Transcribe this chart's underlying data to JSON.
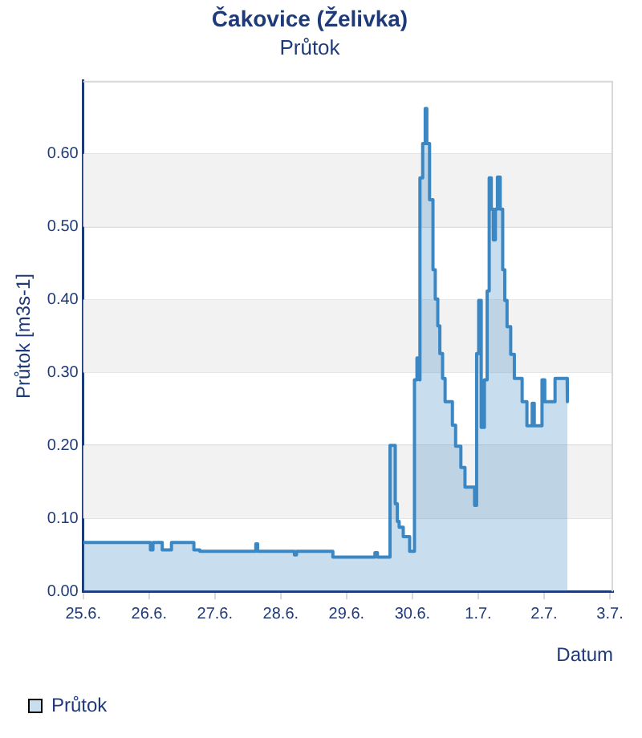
{
  "chart_data": {
    "type": "area",
    "title": "Čakovice (Želivka)",
    "subtitle": "Průtok",
    "xlabel": "Datum",
    "ylabel": "Průtok [m3s-1]",
    "x": [
      "--06-25T00:00",
      "--06-26T00:30",
      "--06-26T00:30",
      "--06-26T01:25",
      "--06-26T01:25",
      "--06-26T04:48",
      "--06-26T04:48",
      "--06-26T08:10",
      "--06-26T08:10",
      "--06-26T16:20",
      "--06-26T16:20",
      "--06-26T18:30",
      "--06-26T18:30",
      "--06-27T14:55",
      "--06-27T14:55",
      "--06-27T15:35",
      "--06-27T15:35",
      "--06-28T05:00",
      "--06-28T05:00",
      "--06-28T05:45",
      "--06-28T05:45",
      "--06-28T19:00",
      "--06-28T19:00",
      "--06-29T10:20",
      "--06-29T10:20",
      "--06-29T11:15",
      "--06-29T11:15",
      "--06-29T15:50",
      "--06-29T15:50",
      "--06-29T17:45",
      "--06-29T17:45",
      "--06-29T18:30",
      "--06-29T18:30",
      "--06-29T19:10",
      "--06-29T19:10",
      "--06-29T20:40",
      "--06-29T20:40",
      "--06-29T23:00",
      "--06-29T23:00",
      "--06-30T00:45",
      "--06-30T00:45",
      "--06-30T01:40",
      "--06-30T01:40",
      "--06-30T02:25",
      "--06-30T02:25",
      "--06-30T02:55",
      "--06-30T02:55",
      "--06-30T03:45",
      "--06-30T03:45",
      "--06-30T04:40",
      "--06-30T04:40",
      "--06-30T05:15",
      "--06-30T05:15",
      "--06-30T06:15",
      "--06-30T06:15",
      "--06-30T07:30",
      "--06-30T07:30",
      "--06-30T08:20",
      "--06-30T08:20",
      "--06-30T09:15",
      "--06-30T09:15",
      "--06-30T10:00",
      "--06-30T10:00",
      "--06-30T11:00",
      "--06-30T11:00",
      "--06-30T11:55",
      "--06-30T11:55",
      "--06-30T14:35",
      "--06-30T14:35",
      "--06-30T15:45",
      "--06-30T15:45",
      "--06-30T17:40",
      "--06-30T17:40",
      "--06-30T19:10",
      "--06-30T19:10",
      "--06-30T22:40",
      "--06-30T22:40",
      "--06-30T23:25",
      "--06-30T23:25",
      "--07-01T00:10",
      "--07-01T00:10",
      "--07-01T01:05",
      "--07-01T01:05",
      "--07-01T02:15",
      "--07-01T02:15",
      "--07-01T03:15",
      "--07-01T03:15",
      "--07-01T04:00",
      "--07-01T04:00",
      "--07-01T04:45",
      "--07-01T04:45",
      "--07-01T05:30",
      "--07-01T05:30",
      "--07-01T06:15",
      "--07-01T06:15",
      "--07-01T07:00",
      "--07-01T07:00",
      "--07-01T08:00",
      "--07-01T08:00",
      "--07-01T08:55",
      "--07-01T08:55",
      "--07-01T09:40",
      "--07-01T09:40",
      "--07-01T10:30",
      "--07-01T10:30",
      "--07-01T11:50",
      "--07-01T11:50",
      "--07-01T13:10",
      "--07-01T13:10",
      "--07-01T16:00",
      "--07-01T16:00",
      "--07-01T17:45",
      "--07-01T17:45",
      "--07-01T19:40",
      "--07-01T19:40",
      "--07-01T20:25",
      "--07-01T20:25",
      "--07-01T23:15",
      "--07-01T23:15",
      "--07-02T00:15",
      "--07-02T00:15",
      "--07-02T04:00",
      "--07-02T04:00",
      "--07-02T08:25",
      "--07-02T08:30"
    ],
    "series": [
      {
        "name": "Průtok",
        "color": "#3a87c4",
        "values": [
          0.067,
          0.067,
          0.057,
          0.057,
          0.067,
          0.067,
          0.057,
          0.057,
          0.067,
          0.067,
          0.057,
          0.057,
          0.055,
          0.055,
          0.065,
          0.065,
          0.055,
          0.055,
          0.05,
          0.05,
          0.055,
          0.055,
          0.047,
          0.047,
          0.053,
          0.053,
          0.047,
          0.047,
          0.2,
          0.2,
          0.12,
          0.12,
          0.096,
          0.096,
          0.088,
          0.088,
          0.075,
          0.075,
          0.055,
          0.055,
          0.29,
          0.29,
          0.32,
          0.32,
          0.29,
          0.29,
          0.567,
          0.567,
          0.614,
          0.614,
          0.662,
          0.662,
          0.614,
          0.614,
          0.537,
          0.537,
          0.441,
          0.441,
          0.401,
          0.401,
          0.364,
          0.364,
          0.326,
          0.326,
          0.292,
          0.292,
          0.26,
          0.26,
          0.228,
          0.228,
          0.199,
          0.199,
          0.17,
          0.17,
          0.143,
          0.143,
          0.118,
          0.118,
          0.326,
          0.326,
          0.399,
          0.399,
          0.225,
          0.225,
          0.29,
          0.29,
          0.412,
          0.412,
          0.567,
          0.567,
          0.524,
          0.524,
          0.482,
          0.482,
          0.524,
          0.524,
          0.568,
          0.568,
          0.524,
          0.524,
          0.441,
          0.441,
          0.399,
          0.399,
          0.363,
          0.363,
          0.325,
          0.325,
          0.292,
          0.292,
          0.26,
          0.26,
          0.227,
          0.227,
          0.258,
          0.258,
          0.227,
          0.227,
          0.29,
          0.29,
          0.26,
          0.26,
          0.292,
          0.292,
          0.26
        ]
      }
    ],
    "xlim": [
      "--06-25T00:00",
      "--07-03T01:10"
    ],
    "xticks": [
      {
        "value": "--06-25",
        "label": "25.6."
      },
      {
        "value": "--06-26",
        "label": "26.6."
      },
      {
        "value": "--06-27",
        "label": "27.6."
      },
      {
        "value": "--06-28",
        "label": "28.6."
      },
      {
        "value": "--06-29",
        "label": "29.6."
      },
      {
        "value": "--06-30",
        "label": "30.6."
      },
      {
        "value": "--07-01",
        "label": "1.7."
      },
      {
        "value": "--07-02",
        "label": "2.7."
      },
      {
        "value": "--07-03",
        "label": "3.7."
      }
    ],
    "ylim": [
      0,
      0.7
    ],
    "yticks": [
      {
        "value": 0,
        "label": "0.00"
      },
      {
        "value": 0.1,
        "label": "0.10"
      },
      {
        "value": 0.2,
        "label": "0.20"
      },
      {
        "value": 0.3,
        "label": "0.30"
      },
      {
        "value": 0.4,
        "label": "0.40"
      },
      {
        "value": 0.5,
        "label": "0.50"
      },
      {
        "value": 0.6,
        "label": "0.60"
      }
    ],
    "bands": [
      {
        "axis": "y",
        "from": 0.1,
        "to": 0.2,
        "color": "#f2f2f2"
      },
      {
        "axis": "y",
        "from": 0.3,
        "to": 0.4,
        "color": "#f2f2f2"
      },
      {
        "axis": "y",
        "from": 0.5,
        "to": 0.6,
        "color": "#f2f2f2"
      }
    ],
    "grid": "y",
    "legend": "bottom left",
    "marker": "none",
    "line_style": "solid"
  }
}
